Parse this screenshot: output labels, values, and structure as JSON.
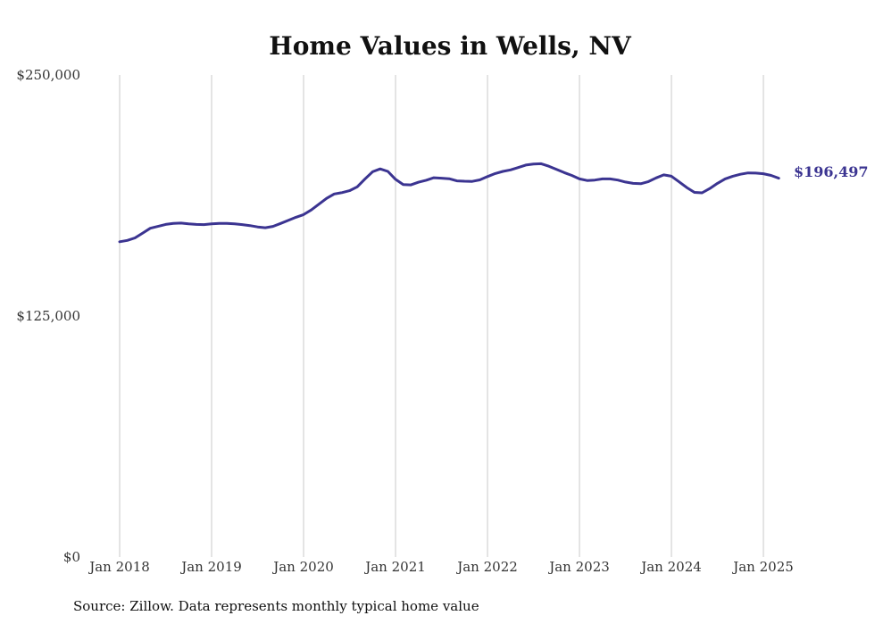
{
  "chart_data": {
    "type": "line",
    "title": "Home Values in Wells, NV",
    "xlabel": "",
    "ylabel": "",
    "ylim": [
      0,
      250000
    ],
    "y_ticks": [
      {
        "value": 0,
        "label": "$0"
      },
      {
        "value": 125000,
        "label": "$125,000"
      },
      {
        "value": 250000,
        "label": "$250,000"
      }
    ],
    "x_ticks": [
      {
        "value": "2018-01",
        "label": "Jan 2018"
      },
      {
        "value": "2019-01",
        "label": "Jan 2019"
      },
      {
        "value": "2020-01",
        "label": "Jan 2020"
      },
      {
        "value": "2021-01",
        "label": "Jan 2021"
      },
      {
        "value": "2022-01",
        "label": "Jan 2022"
      },
      {
        "value": "2023-01",
        "label": "Jan 2023"
      },
      {
        "value": "2024-01",
        "label": "Jan 2024"
      },
      {
        "value": "2025-01",
        "label": "Jan 2025"
      }
    ],
    "grid": "vertical",
    "line_color": "#3b3491",
    "end_label": "$196,497",
    "source_note": "Source: Zillow. Data represents monthly typical home value",
    "series": [
      {
        "x": [
          "2018-01",
          "2018-02",
          "2018-03",
          "2018-04",
          "2018-05",
          "2018-06",
          "2018-07",
          "2018-08",
          "2018-09",
          "2018-10",
          "2018-11",
          "2018-12",
          "2019-01",
          "2019-02",
          "2019-03",
          "2019-04",
          "2019-05",
          "2019-06",
          "2019-07",
          "2019-08",
          "2019-09",
          "2019-10",
          "2019-11",
          "2019-12",
          "2020-01",
          "2020-02",
          "2020-03",
          "2020-04",
          "2020-05",
          "2020-06",
          "2020-07",
          "2020-08",
          "2020-09",
          "2020-10",
          "2020-11",
          "2020-12",
          "2021-01",
          "2021-02",
          "2021-03",
          "2021-04",
          "2021-05",
          "2021-06",
          "2021-07",
          "2021-08",
          "2021-09",
          "2021-10",
          "2021-11",
          "2021-12",
          "2022-01",
          "2022-02",
          "2022-03",
          "2022-04",
          "2022-05",
          "2022-06",
          "2022-07",
          "2022-08",
          "2022-09",
          "2022-10",
          "2022-11",
          "2022-12",
          "2023-01",
          "2023-02",
          "2023-03",
          "2023-04",
          "2023-05",
          "2023-06",
          "2023-07",
          "2023-08",
          "2023-09",
          "2023-10",
          "2023-11",
          "2023-12",
          "2024-01",
          "2024-02",
          "2024-03",
          "2024-04",
          "2024-05",
          "2024-06",
          "2024-07",
          "2024-08",
          "2024-09",
          "2024-10",
          "2024-11",
          "2024-12",
          "2025-01",
          "2025-02",
          "2025-03"
        ],
        "values": [
          163500,
          164200,
          165500,
          168000,
          170500,
          171500,
          172500,
          173000,
          173200,
          172800,
          172500,
          172400,
          172800,
          173000,
          173000,
          172800,
          172400,
          171900,
          171200,
          170800,
          171500,
          173000,
          174600,
          176200,
          177600,
          180000,
          183000,
          186000,
          188300,
          189000,
          190000,
          192000,
          196000,
          199800,
          201300,
          200000,
          195900,
          193200,
          193000,
          194400,
          195400,
          196700,
          196500,
          196200,
          195100,
          194900,
          194800,
          195600,
          197300,
          198900,
          200000,
          200800,
          202000,
          203300,
          203800,
          204000,
          202700,
          201000,
          199400,
          197900,
          196100,
          195300,
          195500,
          196100,
          196100,
          195500,
          194500,
          193800,
          193600,
          194700,
          196600,
          198200,
          197500,
          194600,
          191600,
          189100,
          188900,
          191100,
          193800,
          196100,
          197500,
          198500,
          199200,
          199100,
          198800,
          197900,
          196500
        ]
      }
    ]
  }
}
